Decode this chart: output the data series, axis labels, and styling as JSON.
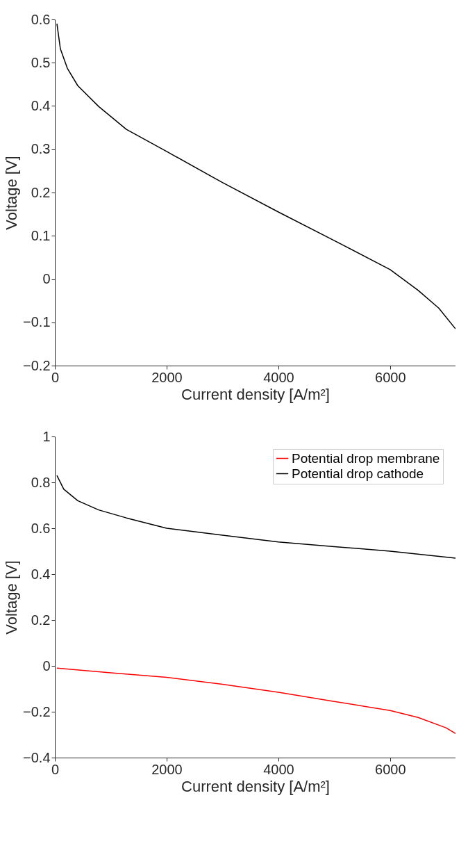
{
  "chart_data": [
    {
      "type": "line",
      "xlabel": "Current density [A/m²]",
      "ylabel": "Voltage [V]",
      "xlim": [
        0,
        7170
      ],
      "xticks": [
        0,
        2000,
        4000,
        6000
      ],
      "ylim": [
        -0.2,
        0.6
      ],
      "yticks": [
        -0.2,
        -0.1,
        0,
        0.1,
        0.2,
        0.3,
        0.4,
        0.5,
        0.6
      ],
      "grid": false,
      "legend": false,
      "series": [
        {
          "color": "#000000",
          "x": [
            37,
            99,
            224,
            410,
            783,
            1280,
            2000,
            3000,
            4000,
            5000,
            6000,
            6500,
            6870,
            7170
          ],
          "values": [
            0.59,
            0.532,
            0.487,
            0.447,
            0.399,
            0.346,
            0.295,
            0.223,
            0.155,
            0.089,
            0.022,
            -0.026,
            -0.067,
            -0.115
          ]
        }
      ]
    },
    {
      "type": "line",
      "xlabel": "Current density [A/m²]",
      "ylabel": "Voltage [V]",
      "xlim": [
        0,
        7170
      ],
      "xticks": [
        0,
        2000,
        4000,
        6000
      ],
      "ylim": [
        -0.4,
        1
      ],
      "yticks": [
        -0.4,
        -0.2,
        0,
        0.2,
        0.4,
        0.6,
        0.8,
        1
      ],
      "grid": false,
      "legend": "top right",
      "series": [
        {
          "name": "Potential drop membrane",
          "color": "#ff0000",
          "x": [
            37,
            1000,
            2000,
            3000,
            4000,
            5000,
            6000,
            6500,
            7000,
            7170
          ],
          "values": [
            -0.01,
            -0.03,
            -0.05,
            -0.08,
            -0.115,
            -0.155,
            -0.195,
            -0.225,
            -0.27,
            -0.295
          ]
        },
        {
          "name": "Potential drop cathode",
          "color": "#000000",
          "x": [
            37,
            160,
            410,
            783,
            1280,
            2000,
            3000,
            4000,
            5000,
            6000,
            7170
          ],
          "values": [
            0.83,
            0.77,
            0.72,
            0.68,
            0.645,
            0.6,
            0.57,
            0.54,
            0.52,
            0.5,
            0.47
          ]
        }
      ]
    }
  ]
}
